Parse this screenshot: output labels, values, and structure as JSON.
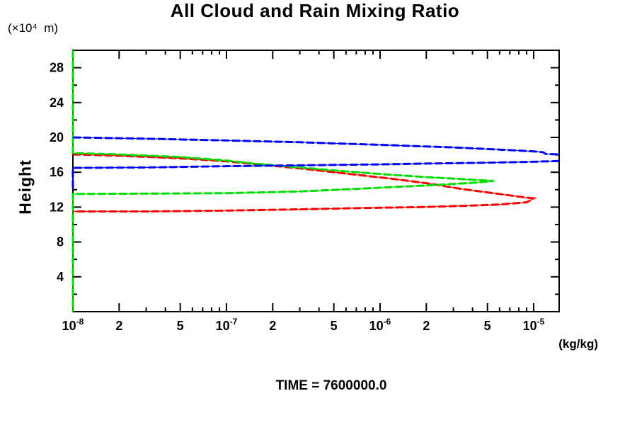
{
  "title": "All Cloud and Rain Mixing Ratio",
  "time_label": "TIME = 7600000.0",
  "y_axis_unit": "(×10⁴  m)",
  "y_axis_label": "Height",
  "x_axis_unit": "(kg/kg)",
  "chart_data": {
    "type": "line",
    "title": "All Cloud and Rain Mixing Ratio",
    "xlabel": "(kg/kg)",
    "ylabel": "Height (×10⁴ m)",
    "x_scale": "log",
    "xlim": [
      1e-08,
      1.47e-05
    ],
    "ylim": [
      0,
      30
    ],
    "grid": false,
    "legend": "none",
    "annotation": "TIME = 7600000.0",
    "x_axis": {
      "labeled_ticks": [
        {
          "v": 1e-08,
          "label": "10",
          "exp": "-8"
        },
        {
          "v": 2e-08,
          "label": "2"
        },
        {
          "v": 5e-08,
          "label": "5"
        },
        {
          "v": 1e-07,
          "label": "10",
          "exp": "-7"
        },
        {
          "v": 2e-07,
          "label": "2"
        },
        {
          "v": 5e-07,
          "label": "5"
        },
        {
          "v": 1e-06,
          "label": "10",
          "exp": "-6"
        },
        {
          "v": 2e-06,
          "label": "2"
        },
        {
          "v": 5e-06,
          "label": "5"
        },
        {
          "v": 1e-05,
          "label": "10",
          "exp": "-5"
        }
      ],
      "minor_ticks": [
        3e-08,
        4e-08,
        6e-08,
        7e-08,
        8e-08,
        9e-08,
        3e-07,
        4e-07,
        6e-07,
        7e-07,
        8e-07,
        9e-07,
        3e-06,
        4e-06,
        6e-06,
        7e-06,
        8e-06,
        9e-06
      ]
    },
    "y_axis": {
      "major_ticks": [
        4,
        8,
        12,
        16,
        20,
        24,
        28
      ],
      "minor_ticks": [
        2,
        6,
        10,
        14,
        18,
        22,
        26,
        30
      ]
    },
    "series": [
      {
        "name": "red",
        "color": "#ff0000",
        "style": "thick-dash-over-thin-solid",
        "segments": [
          [
            [
              1e-08,
              18.05
            ],
            [
              2e-08,
              17.9
            ],
            [
              5e-08,
              17.6
            ],
            [
              1e-07,
              17.25
            ],
            [
              1.5e-07,
              16.95
            ],
            [
              3e-07,
              16.45
            ],
            [
              6e-07,
              15.85
            ],
            [
              1.2e-06,
              15.25
            ],
            [
              2e-06,
              14.75
            ],
            [
              3.5e-06,
              14.05
            ],
            [
              6e-06,
              13.5
            ],
            [
              8.5e-06,
              13.15
            ],
            [
              1e-05,
              13.0
            ],
            [
              9e-06,
              12.55
            ],
            [
              6e-06,
              12.3
            ],
            [
              3.5e-06,
              12.15
            ],
            [
              1.8e-06,
              12.0
            ],
            [
              8e-07,
              11.9
            ],
            [
              3e-07,
              11.75
            ],
            [
              1e-07,
              11.6
            ],
            [
              3e-08,
              11.5
            ],
            [
              1e-08,
              11.5
            ]
          ]
        ]
      },
      {
        "name": "green",
        "color": "#00dd00",
        "style": "thick-dash-over-thin-solid",
        "segments": [
          [
            [
              1e-08,
              30.0
            ],
            [
              1e-08,
              18.2
            ],
            [
              2e-08,
              18.05
            ],
            [
              5e-08,
              17.75
            ],
            [
              1e-07,
              17.35
            ],
            [
              1.5e-07,
              17.0
            ],
            [
              3e-07,
              16.55
            ],
            [
              6e-07,
              16.1
            ],
            [
              1.2e-06,
              15.7
            ],
            [
              2e-06,
              15.45
            ],
            [
              3.5e-06,
              15.2
            ],
            [
              5e-06,
              15.05
            ],
            [
              5.5e-06,
              15.0
            ],
            [
              4.5e-06,
              14.85
            ],
            [
              3e-06,
              14.65
            ],
            [
              1.8e-06,
              14.45
            ],
            [
              8e-07,
              14.15
            ],
            [
              3e-07,
              13.8
            ],
            [
              1e-07,
              13.6
            ],
            [
              1e-08,
              13.5
            ],
            [
              1e-08,
              0.0
            ]
          ]
        ]
      },
      {
        "name": "blue",
        "color": "#0000ff",
        "style": "thick-dash-over-thin-solid",
        "segments": [
          [
            [
              1e-08,
              20.0
            ],
            [
              3e-08,
              19.85
            ],
            [
              1e-07,
              19.65
            ],
            [
              3e-07,
              19.45
            ],
            [
              1e-06,
              19.15
            ],
            [
              3e-06,
              18.85
            ],
            [
              6e-06,
              18.6
            ],
            [
              1e-05,
              18.4
            ],
            [
              1.15e-05,
              18.3
            ],
            [
              1.2e-05,
              18.1
            ],
            [
              1.47e-05,
              18.05
            ]
          ],
          [
            [
              1.47e-05,
              17.3
            ],
            [
              1e-05,
              17.2
            ],
            [
              5e-06,
              17.1
            ],
            [
              2e-06,
              17.0
            ],
            [
              1e-06,
              16.9
            ],
            [
              3e-07,
              16.8
            ],
            [
              1e-07,
              16.7
            ],
            [
              3e-08,
              16.55
            ],
            [
              1e-08,
              16.5
            ],
            [
              1e-08,
              14.0
            ]
          ]
        ]
      }
    ]
  }
}
